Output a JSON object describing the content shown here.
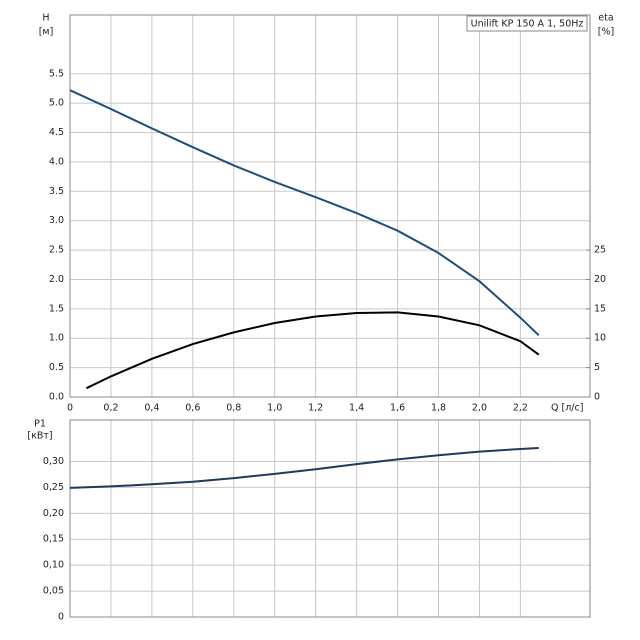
{
  "chart_data": [
    {
      "type": "line",
      "annotation": "Unilift KP 150 A 1, 50Hz",
      "ylabel": "H",
      "yunit": "[м]",
      "y2label": "eta",
      "y2unit": "[%]",
      "xlabel": "Q [л/с]",
      "xlim": [
        0,
        2.54
      ],
      "xticks": [
        0,
        {
          "value": 0.2,
          "label": "0,2"
        },
        {
          "value": 0.4,
          "label": "0,4"
        },
        {
          "value": 0.6,
          "label": "0,6"
        },
        {
          "value": 0.8,
          "label": "0,8"
        },
        {
          "value": 1.0,
          "label": "1,0"
        },
        {
          "value": 1.2,
          "label": "1,2"
        },
        {
          "value": 1.4,
          "label": "1,4"
        },
        {
          "value": 1.6,
          "label": "1,6"
        },
        {
          "value": 1.8,
          "label": "1,8"
        },
        {
          "value": 2.0,
          "label": "2,0"
        },
        {
          "value": 2.2,
          "label": "2,2"
        }
      ],
      "ylim": [
        0,
        6.5
      ],
      "yticks": [
        {
          "value": 0,
          "label": "0.0"
        },
        0.5,
        {
          "value": 1,
          "label": "1.0"
        },
        1.5,
        {
          "value": 2,
          "label": "2.0"
        },
        2.5,
        {
          "value": 3,
          "label": "3.0"
        },
        3.5,
        {
          "value": 4,
          "label": "4.0"
        },
        4.5,
        {
          "value": 5,
          "label": "5.0"
        },
        5.5
      ],
      "y2lim": [
        0,
        65
      ],
      "y2ticks": [
        0,
        5,
        10,
        15,
        20,
        25
      ],
      "grid": true,
      "series": [
        {
          "name": "H",
          "color": "#1f4e79",
          "x": [
            0,
            0.2,
            0.4,
            0.6,
            0.8,
            1.0,
            1.2,
            1.4,
            1.6,
            1.8,
            2.0,
            2.2,
            2.29
          ],
          "values": [
            5.22,
            4.9,
            4.57,
            4.25,
            3.94,
            3.66,
            3.4,
            3.13,
            2.83,
            2.45,
            1.97,
            1.35,
            1.05
          ]
        },
        {
          "name": "eta",
          "color": "#000000",
          "axis": "y2",
          "x": [
            0.08,
            0.2,
            0.4,
            0.6,
            0.8,
            1.0,
            1.2,
            1.4,
            1.6,
            1.8,
            2.0,
            2.2,
            2.29
          ],
          "values": [
            1.5,
            3.5,
            6.5,
            9,
            11,
            12.6,
            13.7,
            14.3,
            14.4,
            13.7,
            12.2,
            9.5,
            7.2
          ]
        }
      ]
    },
    {
      "type": "line",
      "ylabel": "P1",
      "yunit": "[кВт]",
      "ylim": [
        0,
        0.38
      ],
      "yticks": [
        0,
        {
          "value": 0.05,
          "label": "0,05"
        },
        {
          "value": 0.1,
          "label": "0,10"
        },
        {
          "value": 0.15,
          "label": "0,15"
        },
        {
          "value": 0.2,
          "label": "0,20"
        },
        {
          "value": 0.25,
          "label": "0,25"
        },
        {
          "value": 0.3,
          "label": "0,30"
        }
      ],
      "grid": true,
      "series": [
        {
          "name": "P1",
          "color": "#1f3a5a",
          "x": [
            0,
            0.2,
            0.4,
            0.6,
            0.8,
            1.0,
            1.2,
            1.4,
            1.6,
            1.8,
            2.0,
            2.2,
            2.29
          ],
          "values": [
            0.249,
            0.252,
            0.256,
            0.261,
            0.268,
            0.276,
            0.285,
            0.295,
            0.304,
            0.312,
            0.319,
            0.324,
            0.326
          ]
        }
      ]
    }
  ]
}
